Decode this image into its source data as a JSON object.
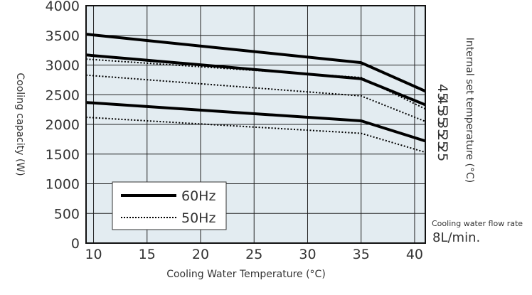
{
  "chart_data": {
    "type": "line",
    "xlabel": "Cooling Water Temperature (°C)",
    "ylabel": "Cooling capacity (W)",
    "right_label": "Internal set temperature (°C)",
    "xlim": [
      9.3,
      41.0
    ],
    "ylim": [
      0,
      4000
    ],
    "xticks": [
      "10",
      "15",
      "20",
      "25",
      "30",
      "35",
      "40"
    ],
    "xtick_values": [
      10,
      15,
      20,
      25,
      30,
      35,
      40
    ],
    "yticks": [
      "0",
      "500",
      "1000",
      "1500",
      "2000",
      "2500",
      "3000",
      "3500",
      "4000"
    ],
    "ytick_values": [
      0,
      500,
      1000,
      1500,
      2000,
      2500,
      3000,
      3500,
      4000
    ],
    "grid": true,
    "background": "#e3ecf1",
    "legend": {
      "placement": "bottom-left",
      "entries": [
        {
          "label": "60Hz",
          "style": "solid"
        },
        {
          "label": "50Hz",
          "style": "dotted"
        }
      ]
    },
    "series": [
      {
        "freq": "60Hz",
        "style": "solid",
        "x": [
          9.3,
          35,
          41.0
        ],
        "y": [
          3520,
          3040,
          2560
        ]
      },
      {
        "freq": "60Hz",
        "style": "solid",
        "x": [
          9.3,
          35,
          41.0
        ],
        "y": [
          3170,
          2770,
          2330
        ]
      },
      {
        "freq": "50Hz",
        "style": "dotted",
        "x": [
          9.3,
          35,
          41.0
        ],
        "y": [
          3100,
          2790,
          2260
        ]
      },
      {
        "freq": "50Hz",
        "style": "dotted",
        "x": [
          9.3,
          35,
          41.0
        ],
        "y": [
          2830,
          2480,
          2050
        ]
      },
      {
        "freq": "60Hz",
        "style": "solid",
        "x": [
          9.3,
          35,
          41.0
        ],
        "y": [
          2370,
          2060,
          1720
        ]
      },
      {
        "freq": "50Hz",
        "style": "dotted",
        "x": [
          9.3,
          35,
          41.0
        ],
        "y": [
          2120,
          1850,
          1530
        ]
      }
    ],
    "curve_labels": [
      "45",
      "45",
      "35",
      "35",
      "25",
      "25"
    ],
    "annotation": {
      "line1": "Cooling water flow rate",
      "line2": "8L/min."
    }
  }
}
